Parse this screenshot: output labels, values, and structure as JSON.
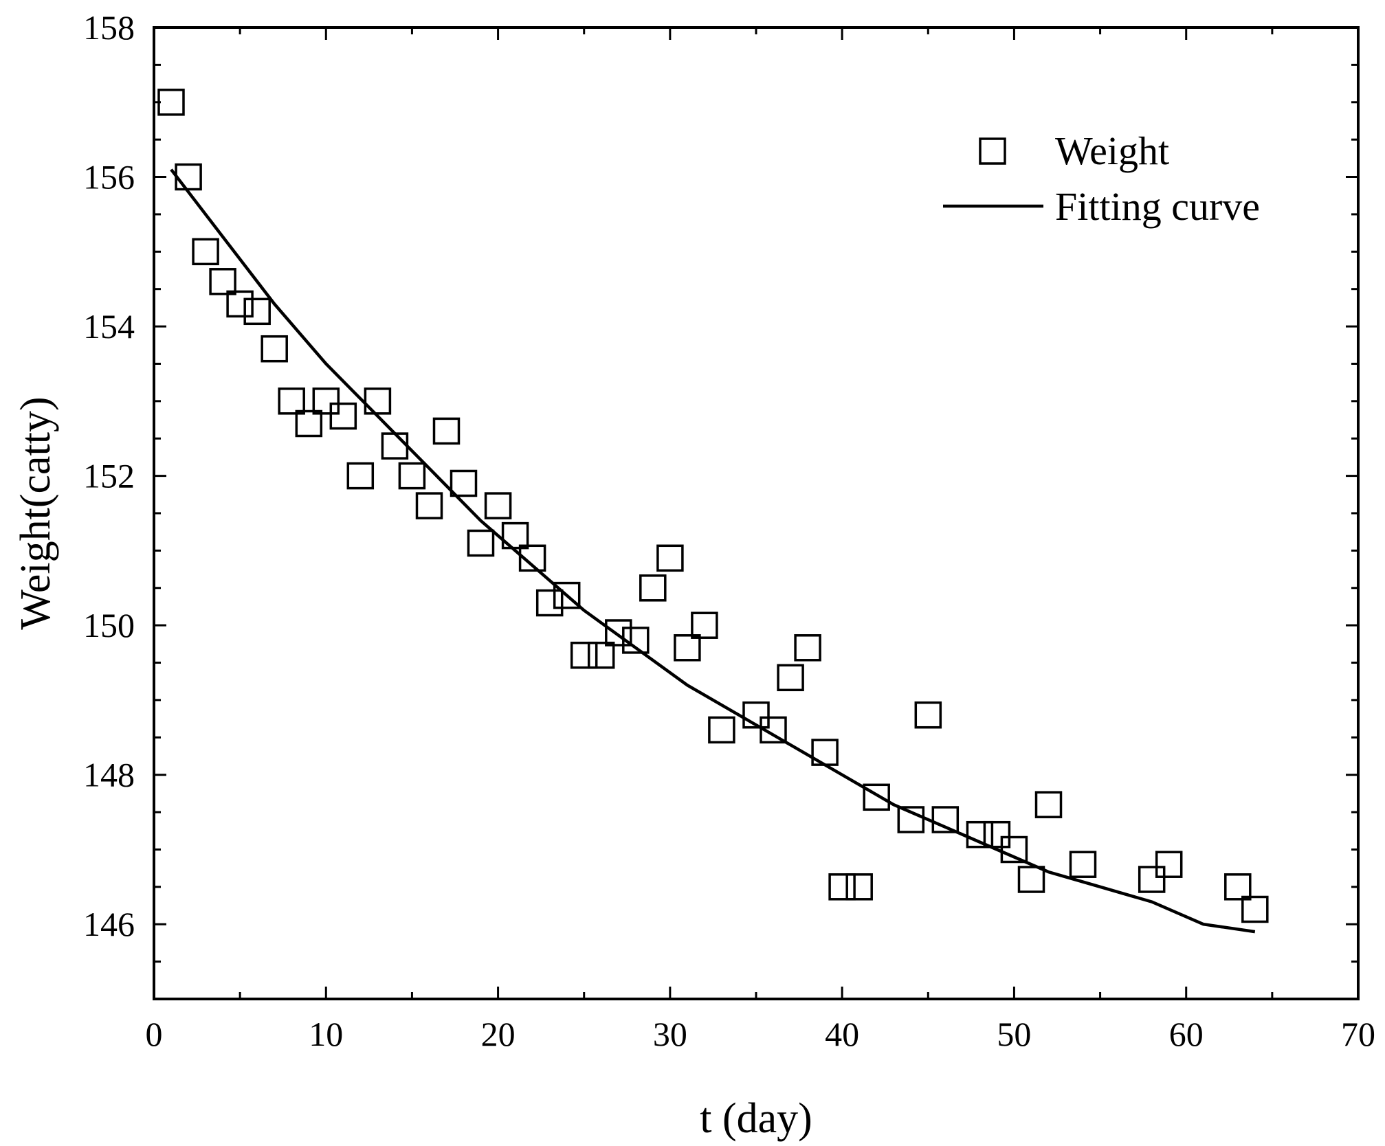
{
  "chart_data": {
    "type": "scatter",
    "title": "",
    "xlabel": "t (day)",
    "ylabel": "Weight(catty)",
    "xlim": [
      0,
      70
    ],
    "ylim": [
      145,
      158
    ],
    "x_ticks": [
      0,
      10,
      20,
      30,
      40,
      50,
      60,
      70
    ],
    "y_ticks": [
      146,
      148,
      150,
      152,
      154,
      156,
      158
    ],
    "grid": false,
    "legend_position": "top-right",
    "legend": {
      "weight_label": "Weight",
      "fit_label": "Fitting curve"
    },
    "series": [
      {
        "name": "Weight",
        "style": "open-square",
        "points": [
          [
            1,
            157.0
          ],
          [
            2,
            156.0
          ],
          [
            3,
            155.0
          ],
          [
            4,
            154.6
          ],
          [
            5,
            154.3
          ],
          [
            6,
            154.2
          ],
          [
            7,
            153.7
          ],
          [
            8,
            153.0
          ],
          [
            9,
            152.7
          ],
          [
            10,
            153.0
          ],
          [
            11,
            152.8
          ],
          [
            12,
            152.0
          ],
          [
            13,
            153.0
          ],
          [
            14,
            152.4
          ],
          [
            15,
            152.0
          ],
          [
            16,
            151.6
          ],
          [
            17,
            152.6
          ],
          [
            18,
            151.9
          ],
          [
            19,
            151.1
          ],
          [
            20,
            151.6
          ],
          [
            21,
            151.2
          ],
          [
            22,
            150.9
          ],
          [
            23,
            150.3
          ],
          [
            24,
            150.4
          ],
          [
            25,
            149.6
          ],
          [
            26,
            149.6
          ],
          [
            27,
            149.9
          ],
          [
            28,
            149.8
          ],
          [
            29,
            150.5
          ],
          [
            30,
            150.9
          ],
          [
            31,
            149.7
          ],
          [
            32,
            150.0
          ],
          [
            33,
            148.6
          ],
          [
            35,
            148.8
          ],
          [
            36,
            148.6
          ],
          [
            37,
            149.3
          ],
          [
            38,
            149.7
          ],
          [
            39,
            148.3
          ],
          [
            40,
            146.5
          ],
          [
            41,
            146.5
          ],
          [
            42,
            147.7
          ],
          [
            44,
            147.4
          ],
          [
            45,
            148.8
          ],
          [
            46,
            147.4
          ],
          [
            48,
            147.2
          ],
          [
            49,
            147.2
          ],
          [
            50,
            147.0
          ],
          [
            51,
            146.6
          ],
          [
            52,
            147.6
          ],
          [
            54,
            146.8
          ],
          [
            58,
            146.6
          ],
          [
            59,
            146.8
          ],
          [
            63,
            146.5
          ],
          [
            64,
            146.2
          ]
        ]
      },
      {
        "name": "Fitting curve",
        "style": "line",
        "points": [
          [
            1,
            156.1
          ],
          [
            4,
            155.2
          ],
          [
            7,
            154.3
          ],
          [
            10,
            153.5
          ],
          [
            13,
            152.8
          ],
          [
            16,
            152.1
          ],
          [
            19,
            151.4
          ],
          [
            22,
            150.8
          ],
          [
            25,
            150.2
          ],
          [
            28,
            149.7
          ],
          [
            31,
            149.2
          ],
          [
            34,
            148.8
          ],
          [
            37,
            148.4
          ],
          [
            40,
            148.0
          ],
          [
            43,
            147.6
          ],
          [
            46,
            147.3
          ],
          [
            49,
            147.0
          ],
          [
            52,
            146.7
          ],
          [
            55,
            146.5
          ],
          [
            58,
            146.3
          ],
          [
            61,
            146.0
          ],
          [
            64,
            145.9
          ]
        ]
      }
    ]
  }
}
